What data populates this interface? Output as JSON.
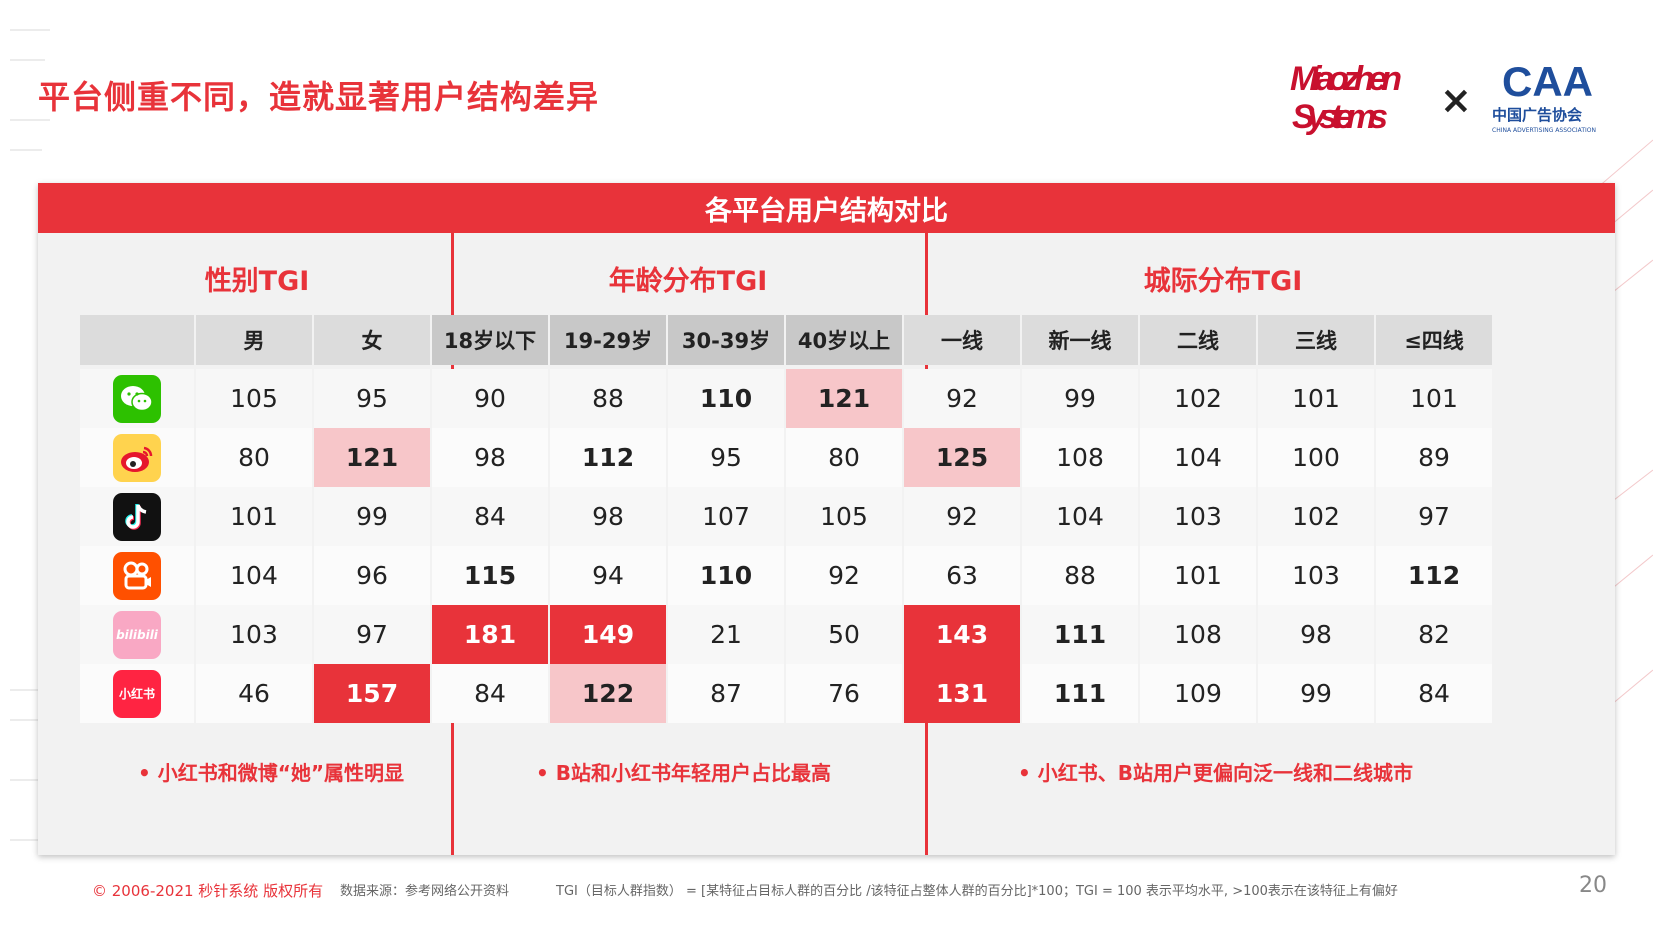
{
  "page": {
    "title": "平台侧重不同，造就显著用户结构差异",
    "page_number": "20"
  },
  "logos": {
    "miaozhen_line1": "Miaozhen",
    "miaozhen_line2": "Systems",
    "times": "×",
    "caa_mark": "CAA",
    "caa_cn": "中国广告协会",
    "caa_en": "CHINA ADVERTISING ASSOCIATION"
  },
  "panel": {
    "title": "各平台用户结构对比",
    "groups": {
      "gender": "性别TGI",
      "age": "年龄分布TGI",
      "city": "城际分布TGI"
    },
    "columns": [
      "男",
      "女",
      "18岁以下",
      "19-29岁",
      "30-39岁",
      "40岁以上",
      "一线",
      "新一线",
      "二线",
      "三线",
      "≤四线"
    ],
    "rows": [
      {
        "app": "wechat-icon",
        "values": [
          "105",
          "95",
          "90",
          "88",
          "110",
          "121",
          "92",
          "99",
          "102",
          "101",
          "101"
        ]
      },
      {
        "app": "weibo-icon",
        "values": [
          "80",
          "121",
          "98",
          "112",
          "95",
          "80",
          "125",
          "108",
          "104",
          "100",
          "89"
        ]
      },
      {
        "app": "douyin-icon",
        "values": [
          "101",
          "99",
          "84",
          "98",
          "107",
          "105",
          "92",
          "104",
          "103",
          "102",
          "97"
        ]
      },
      {
        "app": "kuaishou-icon",
        "values": [
          "104",
          "96",
          "115",
          "94",
          "110",
          "92",
          "63",
          "88",
          "101",
          "103",
          "112"
        ]
      },
      {
        "app": "bilibili-icon",
        "values": [
          "103",
          "97",
          "181",
          "149",
          "21",
          "50",
          "143",
          "111",
          "108",
          "98",
          "82"
        ]
      },
      {
        "app": "xiaohongshu-icon",
        "values": [
          "46",
          "157",
          "84",
          "122",
          "87",
          "76",
          "131",
          "111",
          "109",
          "99",
          "84"
        ]
      }
    ],
    "app_labels": {
      "bilibili": "bilibili",
      "xiaohongshu": "小红书"
    },
    "notes": {
      "gender": "•  小红书和微博“她”属性明显",
      "age": "•  B站和小红书年轻用户占比最高",
      "city": "•  小红书、B站用户更偏向泛一线和二线城市"
    }
  },
  "footer": {
    "copyright": "© 2006-2021 秒针系统 版权所有",
    "source": "数据来源：参考网络公开资料",
    "note": "TGI（目标人群指数） = [某特征占目标人群的百分比 /该特征占整体人群的百分比]*100；TGI = 100 表示平均水平, >100表示在该特征上有偏好"
  },
  "colors": {
    "accent": "#e8333a",
    "highlight_pink": "#f7c6c9",
    "panel_bg": "#f2f2f2"
  }
}
